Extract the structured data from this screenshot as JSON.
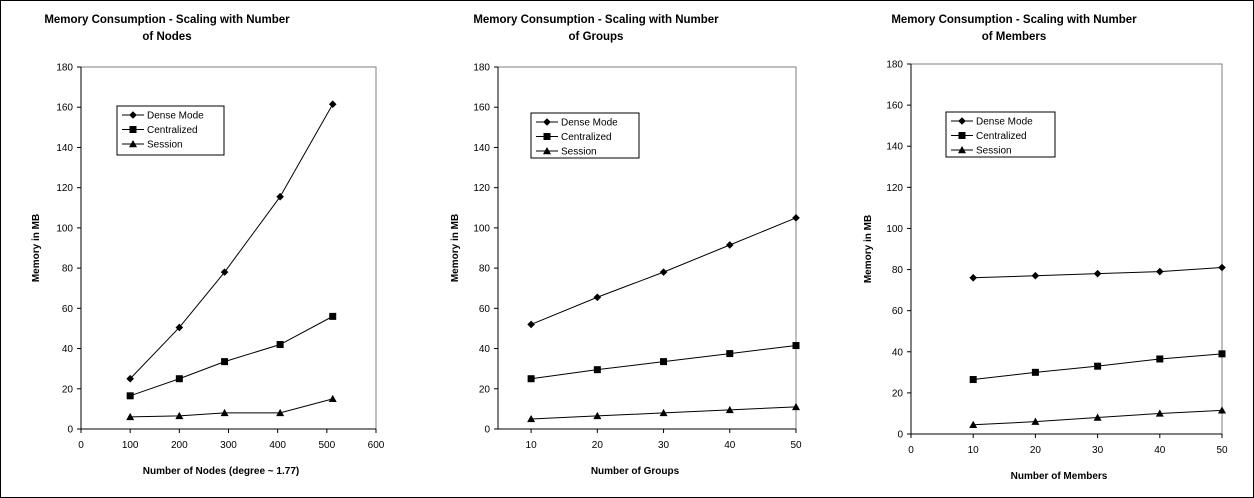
{
  "chart_data": [
    {
      "type": "line",
      "title": [
        "Memory Consumption - Scaling with Number",
        "of Nodes"
      ],
      "xlabel": "Number of Nodes (degree ~ 1.77)",
      "ylabel": "Memory in MB",
      "xlim": [
        0,
        600
      ],
      "ylim": [
        0,
        180
      ],
      "xticks": [
        0,
        100,
        200,
        300,
        400,
        500,
        600
      ],
      "yticks": [
        0,
        20,
        40,
        60,
        80,
        100,
        120,
        140,
        160,
        180
      ],
      "grid": false,
      "legend_position": "upper-left",
      "series": [
        {
          "name": "Dense Mode",
          "marker": "diamond",
          "x": [
            100,
            200,
            292,
            405,
            512
          ],
          "values": [
            25,
            50.5,
            78,
            115.5,
            161.5
          ]
        },
        {
          "name": "Centralized",
          "marker": "square",
          "x": [
            100,
            200,
            292,
            405,
            512
          ],
          "values": [
            16.5,
            25,
            33.5,
            42,
            56
          ]
        },
        {
          "name": "Session",
          "marker": "triangle",
          "x": [
            100,
            200,
            292,
            405,
            512
          ],
          "values": [
            6,
            6.5,
            8,
            8,
            15
          ]
        }
      ]
    },
    {
      "type": "line",
      "title": [
        "Memory Consumption - Scaling with Number",
        "of Groups"
      ],
      "xlabel": "Number of Groups",
      "ylabel": "Memory in MB",
      "xlim": [
        5,
        50
      ],
      "ylim": [
        0,
        180
      ],
      "xticks": [
        10,
        20,
        30,
        40,
        50
      ],
      "yticks": [
        0,
        20,
        40,
        60,
        80,
        100,
        120,
        140,
        160,
        180
      ],
      "grid": false,
      "legend_position": "upper-left",
      "series": [
        {
          "name": "Dense Mode",
          "marker": "diamond",
          "x": [
            10,
            20,
            30,
            40,
            50
          ],
          "values": [
            52,
            65.5,
            78,
            91.5,
            105
          ]
        },
        {
          "name": "Centralized",
          "marker": "square",
          "x": [
            10,
            20,
            30,
            40,
            50
          ],
          "values": [
            25,
            29.5,
            33.5,
            37.5,
            41.5
          ]
        },
        {
          "name": "Session",
          "marker": "triangle",
          "x": [
            10,
            20,
            30,
            40,
            50
          ],
          "values": [
            5,
            6.5,
            8,
            9.5,
            11
          ]
        }
      ]
    },
    {
      "type": "line",
      "title": [
        "Memory Consumption - Scaling with Number",
        "of Members"
      ],
      "xlabel": "Number of Members",
      "ylabel": "Memory in MB",
      "xlim": [
        0,
        50
      ],
      "ylim": [
        0,
        180
      ],
      "xticks": [
        0,
        10,
        20,
        30,
        40,
        50
      ],
      "yticks": [
        0,
        20,
        40,
        60,
        80,
        100,
        120,
        140,
        160,
        180
      ],
      "grid": false,
      "legend_position": "upper-left",
      "series": [
        {
          "name": "Dense Mode",
          "marker": "diamond",
          "x": [
            10,
            20,
            30,
            40,
            50
          ],
          "values": [
            76,
            77,
            78,
            79,
            81
          ]
        },
        {
          "name": "Centralized",
          "marker": "square",
          "x": [
            10,
            20,
            30,
            40,
            50
          ],
          "values": [
            26.5,
            30,
            33,
            36.5,
            39
          ]
        },
        {
          "name": "Session",
          "marker": "triangle",
          "x": [
            10,
            20,
            30,
            40,
            50
          ],
          "values": [
            4.5,
            6,
            8,
            10,
            11.5
          ]
        }
      ]
    }
  ],
  "style": {
    "line_color": "#000000",
    "marker_color": "#000000",
    "plot_border_color": "#7f7f7f",
    "background": "#ffffff"
  }
}
